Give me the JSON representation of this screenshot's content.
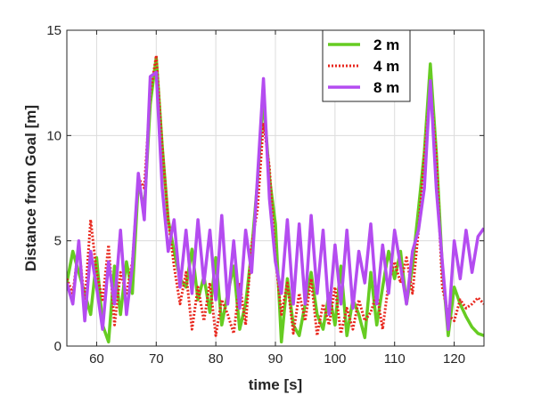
{
  "chart_data": {
    "type": "line",
    "title": "",
    "xlabel": "time [s]",
    "ylabel": "Distance from Goal [m]",
    "xlim": [
      55,
      125
    ],
    "ylim": [
      0,
      15
    ],
    "xticks": [
      60,
      70,
      80,
      90,
      100,
      110,
      120
    ],
    "yticks": [
      0,
      5,
      10,
      15
    ],
    "grid": true,
    "legend_position": "top-right",
    "series": [
      {
        "name": "2 m",
        "color": "#66cc22",
        "style": "solid",
        "x": [
          55,
          56,
          57,
          58,
          59,
          60,
          61,
          62,
          63,
          64,
          65,
          66,
          67,
          68,
          69,
          70,
          71,
          72,
          73,
          74,
          75,
          76,
          77,
          78,
          79,
          80,
          81,
          82,
          83,
          84,
          85,
          86,
          87,
          88,
          89,
          90,
          91,
          92,
          93,
          94,
          95,
          96,
          97,
          98,
          99,
          100,
          101,
          102,
          103,
          104,
          105,
          106,
          107,
          108,
          109,
          110,
          111,
          112,
          113,
          114,
          115,
          116,
          117,
          118,
          119,
          120,
          121,
          122,
          123,
          124,
          125
        ],
        "y": [
          3.0,
          4.5,
          3.5,
          2.5,
          1.5,
          4.2,
          1.0,
          0.2,
          3.8,
          1.5,
          4.0,
          2.5,
          7.8,
          6.5,
          11.5,
          13.7,
          9.5,
          6.0,
          4.5,
          3.2,
          2.8,
          4.6,
          2.2,
          3.3,
          1.6,
          4.2,
          1.0,
          2.5,
          3.8,
          0.8,
          2.0,
          4.5,
          7.8,
          11.8,
          8.0,
          5.8,
          0.2,
          3.2,
          1.0,
          0.5,
          2.0,
          3.5,
          1.5,
          0.8,
          2.5,
          1.0,
          3.8,
          0.5,
          2.2,
          1.5,
          0.4,
          3.5,
          1.0,
          2.8,
          4.5,
          3.2,
          4.5,
          2.0,
          3.8,
          6.5,
          9.2,
          13.4,
          9.2,
          3.8,
          0.5,
          2.8,
          2.0,
          1.4,
          0.9,
          0.6,
          0.5
        ]
      },
      {
        "name": "4 m",
        "color": "#e8261c",
        "style": "dotted",
        "x": [
          55,
          56,
          57,
          58,
          59,
          60,
          61,
          62,
          63,
          64,
          65,
          66,
          67,
          68,
          69,
          70,
          71,
          72,
          73,
          74,
          75,
          76,
          77,
          78,
          79,
          80,
          81,
          82,
          83,
          84,
          85,
          86,
          87,
          88,
          89,
          90,
          91,
          92,
          93,
          94,
          95,
          96,
          97,
          98,
          99,
          100,
          101,
          102,
          103,
          104,
          105,
          106,
          107,
          108,
          109,
          110,
          111,
          112,
          113,
          114,
          115,
          116,
          117,
          118,
          119,
          120,
          121,
          122,
          123,
          124,
          125
        ],
        "y": [
          3.2,
          2.5,
          4.8,
          2.0,
          6.0,
          3.5,
          2.2,
          4.8,
          1.0,
          3.5,
          2.5,
          4.0,
          8.0,
          7.5,
          12.0,
          13.8,
          9.5,
          6.0,
          3.8,
          2.0,
          3.5,
          0.8,
          2.8,
          1.2,
          3.0,
          0.5,
          2.2,
          1.5,
          0.6,
          3.0,
          1.0,
          4.8,
          6.5,
          10.6,
          8.5,
          4.2,
          1.5,
          3.0,
          0.6,
          2.5,
          1.2,
          3.2,
          0.5,
          2.0,
          1.0,
          2.8,
          0.6,
          1.8,
          0.8,
          2.2,
          1.2,
          1.6,
          2.5,
          0.8,
          3.0,
          4.0,
          3.0,
          4.2,
          2.5,
          5.5,
          9.0,
          12.3,
          9.0,
          2.8,
          1.5,
          1.2,
          2.2,
          1.8,
          2.0,
          2.3,
          2.0
        ]
      },
      {
        "name": "8 m",
        "color": "#b44cf0",
        "style": "solid",
        "x": [
          55,
          56,
          57,
          58,
          59,
          60,
          61,
          62,
          63,
          64,
          65,
          66,
          67,
          68,
          69,
          70,
          71,
          72,
          73,
          74,
          75,
          76,
          77,
          78,
          79,
          80,
          81,
          82,
          83,
          84,
          85,
          86,
          87,
          88,
          89,
          90,
          91,
          92,
          93,
          94,
          95,
          96,
          97,
          98,
          99,
          100,
          101,
          102,
          103,
          104,
          105,
          106,
          107,
          108,
          109,
          110,
          111,
          112,
          113,
          114,
          115,
          116,
          117,
          118,
          119,
          120,
          121,
          122,
          123,
          124,
          125
        ],
        "y": [
          3.0,
          2.0,
          5.0,
          1.2,
          4.5,
          2.8,
          0.8,
          4.0,
          2.0,
          5.5,
          1.5,
          3.8,
          8.2,
          6.0,
          12.8,
          13.0,
          7.5,
          4.5,
          6.0,
          2.8,
          5.5,
          2.5,
          6.0,
          3.0,
          5.5,
          2.2,
          6.2,
          2.0,
          5.0,
          1.8,
          5.5,
          3.5,
          8.0,
          12.7,
          7.0,
          4.0,
          2.5,
          6.0,
          2.0,
          5.8,
          2.0,
          6.2,
          2.5,
          5.5,
          1.5,
          4.8,
          2.0,
          5.5,
          1.8,
          4.5,
          3.0,
          5.8,
          2.0,
          4.8,
          2.5,
          5.5,
          3.8,
          2.0,
          4.5,
          5.5,
          7.5,
          12.6,
          7.5,
          4.0,
          0.8,
          5.0,
          3.2,
          5.5,
          3.5,
          5.2,
          5.6
        ]
      }
    ]
  }
}
